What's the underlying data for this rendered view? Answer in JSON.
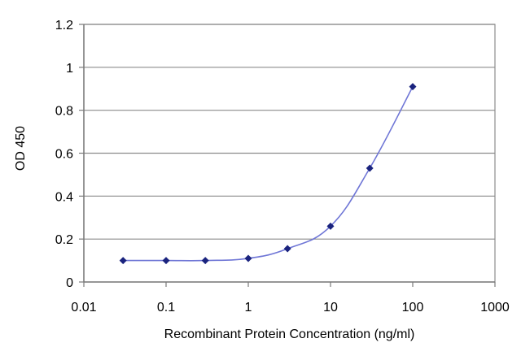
{
  "chart_data": {
    "type": "line",
    "title": "",
    "xlabel": "Recombinant Protein Concentration (ng/ml)",
    "ylabel": "OD 450",
    "xscale": "log",
    "xlim": [
      0.01,
      1000
    ],
    "ylim": [
      0,
      1.2
    ],
    "xticks": [
      0.01,
      0.1,
      1,
      10,
      100,
      1000
    ],
    "xtick_labels": [
      "0.01",
      "0.1",
      "1",
      "10",
      "100",
      "1000"
    ],
    "yticks": [
      0,
      0.2,
      0.4,
      0.6,
      0.8,
      1,
      1.2
    ],
    "ytick_labels": [
      "0",
      "0.2",
      "0.4",
      "0.6",
      "0.8",
      "1",
      "1.2"
    ],
    "grid": "horizontal",
    "legend": "none",
    "series": [
      {
        "x": [
          0.03,
          0.1,
          0.3,
          1,
          3,
          10,
          30,
          100
        ],
        "y": [
          0.1,
          0.1,
          0.1,
          0.11,
          0.155,
          0.26,
          0.53,
          0.91
        ]
      }
    ],
    "colors": {
      "line": "#6f76d6",
      "marker": "#1a237e",
      "grid": "#8c8c8c",
      "axis": "#7a7a7a"
    }
  }
}
